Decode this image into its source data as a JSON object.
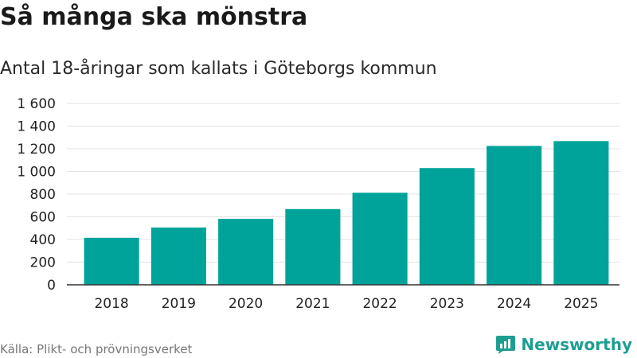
{
  "header": {
    "title": "Så många ska mönstra",
    "subtitle": "Antal 18-åringar som kallats i Göteborgs kommun"
  },
  "footer": {
    "source": "Källa: Plikt- och prövningsverket",
    "brand": "Newsworthy"
  },
  "colors": {
    "bar": "#00a39a",
    "grid": "#e3e3e3",
    "axis": "#333333",
    "brand": "#1e9e93"
  },
  "chart_data": {
    "type": "bar",
    "title": "Så många ska mönstra",
    "subtitle": "Antal 18-åringar som kallats i Göteborgs kommun",
    "xlabel": "",
    "ylabel": "",
    "categories": [
      "2018",
      "2019",
      "2020",
      "2021",
      "2022",
      "2023",
      "2024",
      "2025"
    ],
    "values": [
      415,
      505,
      582,
      668,
      812,
      1030,
      1225,
      1268
    ],
    "ylim": [
      0,
      1600
    ],
    "yticks": [
      0,
      200,
      400,
      600,
      800,
      1000,
      1200,
      1400,
      1600
    ],
    "ytick_labels": [
      "0",
      "200",
      "400",
      "600",
      "800",
      "1 000",
      "1 200",
      "1 400",
      "1 600"
    ],
    "grid": true
  }
}
